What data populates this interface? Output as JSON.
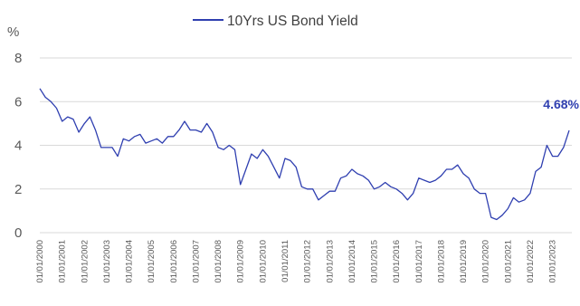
{
  "chart_data": {
    "type": "line",
    "title": "",
    "ylabel": "%",
    "xlabel": "",
    "ylim": [
      0,
      8
    ],
    "yticks": [
      "0",
      "2",
      "4",
      "6",
      "8"
    ],
    "grid": "horizontal",
    "legend_position": "top",
    "color": "#2f3fb0",
    "series": [
      {
        "name": "10Yrs US Bond Yield",
        "x": [
          "2000-01-01",
          "2000-04-01",
          "2000-07-01",
          "2000-10-01",
          "2001-01-01",
          "2001-04-01",
          "2001-07-01",
          "2001-10-01",
          "2002-01-01",
          "2002-04-01",
          "2002-07-01",
          "2002-10-01",
          "2003-01-01",
          "2003-04-01",
          "2003-07-01",
          "2003-10-01",
          "2004-01-01",
          "2004-04-01",
          "2004-07-01",
          "2004-10-01",
          "2005-01-01",
          "2005-04-01",
          "2005-07-01",
          "2005-10-01",
          "2006-01-01",
          "2006-04-01",
          "2006-07-01",
          "2006-10-01",
          "2007-01-01",
          "2007-04-01",
          "2007-07-01",
          "2007-10-01",
          "2008-01-01",
          "2008-04-01",
          "2008-07-01",
          "2008-10-01",
          "2009-01-01",
          "2009-04-01",
          "2009-07-01",
          "2009-10-01",
          "2010-01-01",
          "2010-04-01",
          "2010-07-01",
          "2010-10-01",
          "2011-01-01",
          "2011-04-01",
          "2011-07-01",
          "2011-10-01",
          "2012-01-01",
          "2012-04-01",
          "2012-07-01",
          "2012-10-01",
          "2013-01-01",
          "2013-04-01",
          "2013-07-01",
          "2013-10-01",
          "2014-01-01",
          "2014-04-01",
          "2014-07-01",
          "2014-10-01",
          "2015-01-01",
          "2015-04-01",
          "2015-07-01",
          "2015-10-01",
          "2016-01-01",
          "2016-04-01",
          "2016-07-01",
          "2016-10-01",
          "2017-01-01",
          "2017-04-01",
          "2017-07-01",
          "2017-10-01",
          "2018-01-01",
          "2018-04-01",
          "2018-07-01",
          "2018-10-01",
          "2019-01-01",
          "2019-04-01",
          "2019-07-01",
          "2019-10-01",
          "2020-01-01",
          "2020-04-01",
          "2020-07-01",
          "2020-10-01",
          "2021-01-01",
          "2021-04-01",
          "2021-07-01",
          "2021-10-01",
          "2022-01-01",
          "2022-04-01",
          "2022-07-01",
          "2022-10-01",
          "2023-01-01",
          "2023-04-01",
          "2023-07-01",
          "2023-10-01"
        ],
        "values": [
          6.6,
          6.2,
          6.0,
          5.7,
          5.1,
          5.3,
          5.2,
          4.6,
          5.0,
          5.3,
          4.7,
          3.9,
          3.9,
          3.9,
          3.5,
          4.3,
          4.2,
          4.4,
          4.5,
          4.1,
          4.2,
          4.3,
          4.1,
          4.4,
          4.4,
          4.7,
          5.1,
          4.7,
          4.7,
          4.6,
          5.0,
          4.6,
          3.9,
          3.8,
          4.0,
          3.8,
          2.2,
          2.9,
          3.6,
          3.4,
          3.8,
          3.5,
          3.0,
          2.5,
          3.4,
          3.3,
          3.0,
          2.1,
          2.0,
          2.0,
          1.5,
          1.7,
          1.9,
          1.9,
          2.5,
          2.6,
          2.9,
          2.7,
          2.6,
          2.4,
          2.0,
          2.1,
          2.3,
          2.1,
          2.0,
          1.8,
          1.5,
          1.8,
          2.5,
          2.4,
          2.3,
          2.4,
          2.6,
          2.9,
          2.9,
          3.1,
          2.7,
          2.5,
          2.0,
          1.8,
          1.8,
          0.7,
          0.6,
          0.8,
          1.1,
          1.6,
          1.4,
          1.5,
          1.8,
          2.8,
          3.0,
          4.0,
          3.5,
          3.5,
          3.9,
          4.68
        ]
      }
    ],
    "x_tick_labels": [
      "01/01/2000",
      "01/01/2001",
      "01/01/2002",
      "01/01/2003",
      "01/01/2004",
      "01/01/2005",
      "01/01/2006",
      "01/01/2007",
      "01/01/2008",
      "01/01/2009",
      "01/01/2010",
      "01/01/2011",
      "01/01/2012",
      "01/01/2013",
      "01/01/2014",
      "01/01/2015",
      "01/01/2016",
      "01/01/2017",
      "01/01/2018",
      "01/01/2019",
      "01/01/2020",
      "01/01/2021",
      "01/01/2022",
      "01/01/2023"
    ],
    "annotations": [
      {
        "text": "4.68%",
        "x": "2023-10-01",
        "y": 4.68
      }
    ]
  }
}
